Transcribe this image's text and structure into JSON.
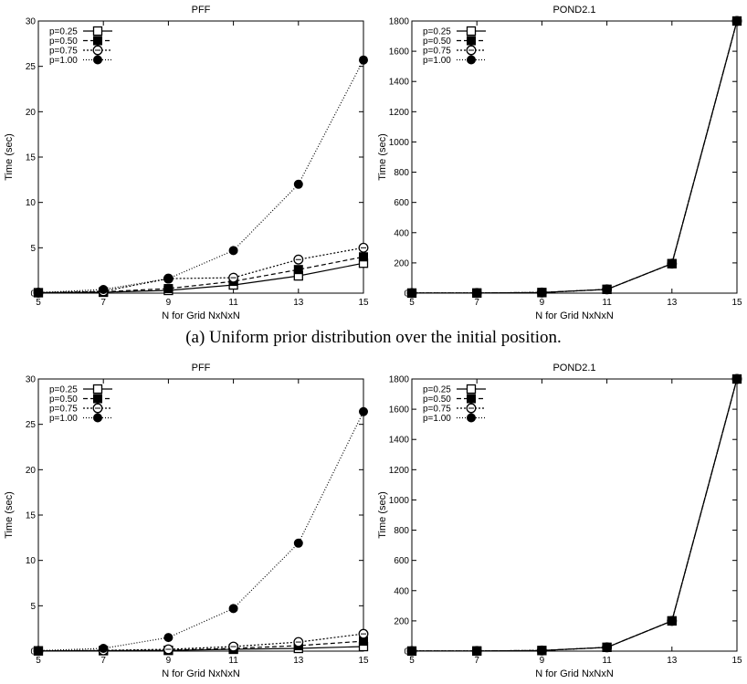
{
  "caption": "(a) Uniform prior distribution over the initial position.",
  "chart_data": [
    {
      "type": "line",
      "title": "PFF",
      "xlabel": "N for Grid NxNxN",
      "ylabel": "Time (sec)",
      "x": [
        5,
        7,
        9,
        11,
        13,
        15
      ],
      "xlim": [
        5,
        15
      ],
      "ylim": [
        0,
        30
      ],
      "yticks": [
        0,
        5,
        10,
        15,
        20,
        25,
        30
      ],
      "legend_position": "top-left",
      "grid": false,
      "series": [
        {
          "name": "p=0.25",
          "marker": "open-square",
          "dash": "solid",
          "values": [
            0.05,
            0.1,
            0.3,
            0.9,
            1.9,
            3.3
          ]
        },
        {
          "name": "p=0.50",
          "marker": "filled-square",
          "dash": "dashed",
          "values": [
            0.05,
            0.15,
            0.5,
            1.3,
            2.6,
            4.0
          ]
        },
        {
          "name": "p=0.75",
          "marker": "open-circle",
          "dash": "dotted",
          "values": [
            0.05,
            0.2,
            1.6,
            1.7,
            3.7,
            5.0
          ]
        },
        {
          "name": "p=1.00",
          "marker": "filled-circle",
          "dash": "fine-dotted",
          "values": [
            0.05,
            0.4,
            1.6,
            4.7,
            12.0,
            25.7
          ]
        }
      ]
    },
    {
      "type": "line",
      "title": "POND2.1",
      "xlabel": "N for Grid NxNxN",
      "ylabel": "Time (sec)",
      "x": [
        5,
        7,
        9,
        11,
        13,
        15
      ],
      "xlim": [
        5,
        15
      ],
      "ylim": [
        0,
        1800
      ],
      "yticks": [
        0,
        200,
        400,
        600,
        800,
        1000,
        1200,
        1400,
        1600,
        1800
      ],
      "legend_position": "top-left",
      "grid": false,
      "series": [
        {
          "name": "p=0.25",
          "marker": "open-square",
          "dash": "solid",
          "values": [
            0.5,
            1,
            4,
            25,
            195,
            1800
          ]
        },
        {
          "name": "p=0.50",
          "marker": "filled-square",
          "dash": "dashed",
          "values": [
            0.5,
            1,
            4,
            25,
            195,
            1800
          ]
        },
        {
          "name": "p=0.75",
          "marker": "open-circle",
          "dash": "dotted",
          "values": [
            0.5,
            1,
            4,
            25,
            195,
            1800
          ]
        },
        {
          "name": "p=1.00",
          "marker": "filled-circle",
          "dash": "fine-dotted",
          "values": [
            0.5,
            1,
            4,
            25,
            195,
            1800
          ]
        }
      ]
    },
    {
      "type": "line",
      "title": "PFF",
      "xlabel": "N for Grid NxNxN",
      "ylabel": "Time (sec)",
      "x": [
        5,
        7,
        9,
        11,
        13,
        15
      ],
      "xlim": [
        5,
        15
      ],
      "ylim": [
        0,
        30
      ],
      "yticks": [
        0,
        5,
        10,
        15,
        20,
        25,
        30
      ],
      "legend_position": "top-left",
      "grid": false,
      "series": [
        {
          "name": "p=0.25",
          "marker": "open-square",
          "dash": "solid",
          "values": [
            0.03,
            0.05,
            0.08,
            0.2,
            0.3,
            0.5
          ]
        },
        {
          "name": "p=0.50",
          "marker": "filled-square",
          "dash": "dashed",
          "values": [
            0.03,
            0.06,
            0.1,
            0.3,
            0.6,
            1.1
          ]
        },
        {
          "name": "p=0.75",
          "marker": "open-circle",
          "dash": "dotted",
          "values": [
            0.03,
            0.08,
            0.2,
            0.5,
            1.0,
            1.9
          ]
        },
        {
          "name": "p=1.00",
          "marker": "filled-circle",
          "dash": "fine-dotted",
          "values": [
            0.05,
            0.3,
            1.5,
            4.7,
            11.9,
            26.4
          ]
        }
      ]
    },
    {
      "type": "line",
      "title": "POND2.1",
      "xlabel": "N for Grid NxNxN",
      "ylabel": "Time (sec)",
      "x": [
        5,
        7,
        9,
        11,
        13,
        15
      ],
      "xlim": [
        5,
        15
      ],
      "ylim": [
        0,
        1800
      ],
      "yticks": [
        0,
        200,
        400,
        600,
        800,
        1000,
        1200,
        1400,
        1600,
        1800
      ],
      "legend_position": "top-left",
      "grid": false,
      "series": [
        {
          "name": "p=0.25",
          "marker": "open-square",
          "dash": "solid",
          "values": [
            0.5,
            1,
            4,
            25,
            200,
            1800
          ]
        },
        {
          "name": "p=0.50",
          "marker": "filled-square",
          "dash": "dashed",
          "values": [
            0.5,
            1,
            4,
            25,
            200,
            1800
          ]
        },
        {
          "name": "p=0.75",
          "marker": "open-circle",
          "dash": "dotted",
          "values": [
            0.5,
            1,
            4,
            25,
            200,
            1800
          ]
        },
        {
          "name": "p=1.00",
          "marker": "filled-circle",
          "dash": "fine-dotted",
          "values": [
            0.5,
            1,
            4,
            25,
            200,
            1800
          ]
        }
      ]
    }
  ]
}
